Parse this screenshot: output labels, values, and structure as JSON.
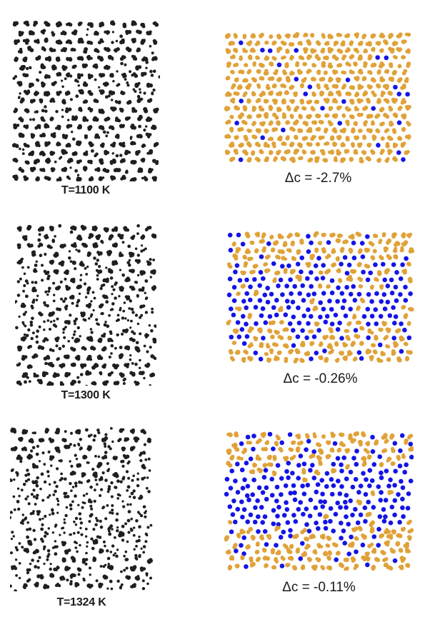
{
  "colors": {
    "atom_black": "#1f1f1f",
    "atom_orange": "#e0a238",
    "atom_blue": "#1414e6"
  },
  "panels": [
    {
      "temperature_label": "T=1100 K",
      "delta_c_label": "Δc = -2.7%",
      "disorder": 0.18,
      "blue_fraction": 0.07
    },
    {
      "temperature_label": "T=1300 K",
      "delta_c_label": "Δc = -0.26%",
      "disorder": 0.55,
      "blue_fraction": 0.45
    },
    {
      "temperature_label": "T=1324 K",
      "delta_c_label": "Δc = -0.11%",
      "disorder": 0.85,
      "blue_fraction": 0.62
    }
  ]
}
